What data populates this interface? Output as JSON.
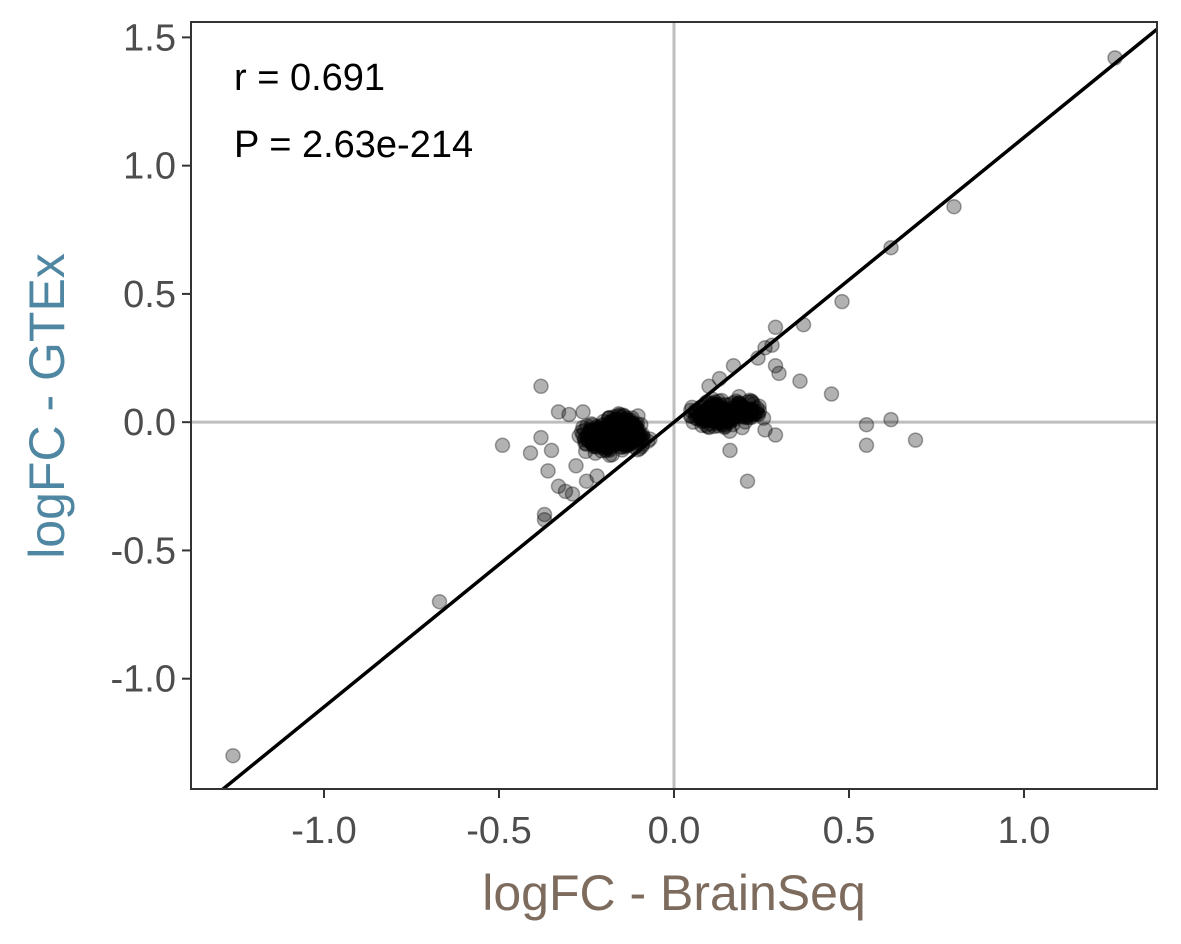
{
  "chart_data": {
    "type": "scatter",
    "title": "",
    "xlabel": "logFC - BrainSeq",
    "ylabel": "logFC - GTEx",
    "xlim": [
      -1.38,
      1.38
    ],
    "ylim": [
      -1.43,
      1.56
    ],
    "x_ticks": [
      -1.0,
      -0.5,
      0.0,
      0.5,
      1.0
    ],
    "x_tick_labels": [
      "-1.0",
      "-0.5",
      "0.0",
      "0.5",
      "1.0"
    ],
    "y_ticks": [
      -1.0,
      -0.5,
      0.0,
      0.5,
      1.0,
      1.5
    ],
    "y_tick_labels": [
      "-1.0",
      "-0.5",
      "0.0",
      "0.5",
      "1.0",
      "1.5"
    ],
    "grid": false,
    "reference_lines": {
      "x": 0,
      "y": 0
    },
    "annotations": [
      "r = 0.691",
      "P = 2.63e-214"
    ],
    "fit_line": {
      "slope": 1.11,
      "intercept": 0.0
    },
    "colors": {
      "xlabel": "#7d6b5d",
      "ylabel": "#4f87a2",
      "points": "#000000",
      "reference_lines": "#bebebe",
      "fit_line": "#000000"
    },
    "points": [
      [
        1.26,
        1.42
      ],
      [
        0.8,
        0.84
      ],
      [
        0.62,
        0.68
      ],
      [
        0.48,
        0.47
      ],
      [
        0.37,
        0.38
      ],
      [
        0.29,
        0.37
      ],
      [
        0.28,
        0.3
      ],
      [
        0.26,
        0.29
      ],
      [
        0.29,
        0.22
      ],
      [
        0.3,
        0.19
      ],
      [
        0.36,
        0.16
      ],
      [
        0.45,
        0.11
      ],
      [
        0.55,
        -0.01
      ],
      [
        0.62,
        0.01
      ],
      [
        0.69,
        -0.07
      ],
      [
        0.55,
        -0.09
      ],
      [
        0.21,
        -0.23
      ],
      [
        0.16,
        -0.11
      ],
      [
        0.29,
        -0.05
      ],
      [
        0.26,
        -0.03
      ],
      [
        0.13,
        0.17
      ],
      [
        0.17,
        0.22
      ],
      [
        0.1,
        0.14
      ],
      [
        0.24,
        0.25
      ],
      [
        -0.38,
        0.14
      ],
      [
        -0.49,
        -0.09
      ],
      [
        -0.41,
        -0.12
      ],
      [
        -0.38,
        -0.06
      ],
      [
        -0.36,
        -0.19
      ],
      [
        -0.35,
        -0.11
      ],
      [
        -0.33,
        -0.25
      ],
      [
        -0.31,
        -0.27
      ],
      [
        -0.29,
        -0.28
      ],
      [
        -0.37,
        -0.36
      ],
      [
        -0.37,
        -0.38
      ],
      [
        -0.33,
        0.04
      ],
      [
        -0.3,
        0.03
      ],
      [
        -0.28,
        -0.17
      ],
      [
        -0.25,
        -0.23
      ],
      [
        -0.22,
        -0.21
      ],
      [
        -0.26,
        0.04
      ],
      [
        -0.67,
        -0.7
      ],
      [
        -1.26,
        -1.3
      ]
    ],
    "clusters": [
      {
        "center": [
          -0.15,
          -0.04
        ],
        "spread": [
          0.05,
          0.045
        ],
        "count": 340
      },
      {
        "center": [
          -0.22,
          -0.06
        ],
        "spread": [
          0.04,
          0.05
        ],
        "count": 90
      },
      {
        "center": [
          0.12,
          0.03
        ],
        "spread": [
          0.045,
          0.035
        ],
        "count": 260
      },
      {
        "center": [
          0.2,
          0.05
        ],
        "spread": [
          0.04,
          0.04
        ],
        "count": 70
      }
    ]
  }
}
